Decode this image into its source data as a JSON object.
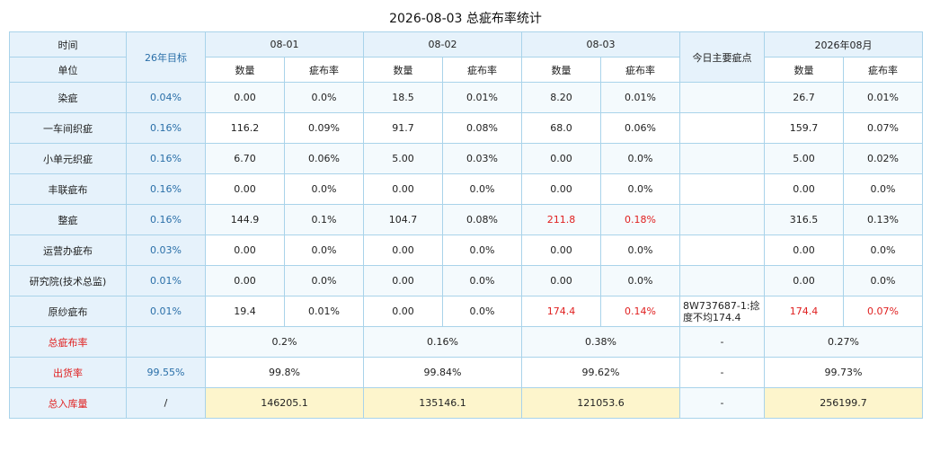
{
  "title": "2026-08-03 总疵布率统计",
  "header": {
    "time_label": "时间",
    "unit_label": "单位",
    "target_label": "26年目标",
    "dates": [
      "08-01",
      "08-02",
      "08-03"
    ],
    "main_defect_label": "今日主要疵点",
    "month_label": "2026年08月",
    "qty_label": "数量",
    "rate_label": "疵布率"
  },
  "rows": [
    {
      "unit": "染疵",
      "target": "0.04%",
      "d1q": "0.00",
      "d1r": "0.0%",
      "d2q": "18.5",
      "d2r": "0.01%",
      "d3q": "8.20",
      "d3r": "0.01%",
      "note": "",
      "mq": "26.7",
      "mr": "0.01%"
    },
    {
      "unit": "一车间织疵",
      "target": "0.16%",
      "d1q": "116.2",
      "d1r": "0.09%",
      "d2q": "91.7",
      "d2r": "0.08%",
      "d3q": "68.0",
      "d3r": "0.06%",
      "note": "",
      "mq": "159.7",
      "mr": "0.07%"
    },
    {
      "unit": "小单元织疵",
      "target": "0.16%",
      "d1q": "6.70",
      "d1r": "0.06%",
      "d2q": "5.00",
      "d2r": "0.03%",
      "d3q": "0.00",
      "d3r": "0.0%",
      "note": "",
      "mq": "5.00",
      "mr": "0.02%"
    },
    {
      "unit": "丰联疵布",
      "target": "0.16%",
      "d1q": "0.00",
      "d1r": "0.0%",
      "d2q": "0.00",
      "d2r": "0.0%",
      "d3q": "0.00",
      "d3r": "0.0%",
      "note": "",
      "mq": "0.00",
      "mr": "0.0%"
    },
    {
      "unit": "整疵",
      "target": "0.16%",
      "d1q": "144.9",
      "d1r": "0.1%",
      "d2q": "104.7",
      "d2r": "0.08%",
      "d3q": "211.8",
      "d3r": "0.18%",
      "note": "",
      "mq": "316.5",
      "mr": "0.13%"
    },
    {
      "unit": "运营办疵布",
      "target": "0.03%",
      "d1q": "0.00",
      "d1r": "0.0%",
      "d2q": "0.00",
      "d2r": "0.0%",
      "d3q": "0.00",
      "d3r": "0.0%",
      "note": "",
      "mq": "0.00",
      "mr": "0.0%"
    },
    {
      "unit": "研究院(技术总监)",
      "target": "0.01%",
      "d1q": "0.00",
      "d1r": "0.0%",
      "d2q": "0.00",
      "d2r": "0.0%",
      "d3q": "0.00",
      "d3r": "0.0%",
      "note": "",
      "mq": "0.00",
      "mr": "0.0%"
    },
    {
      "unit": "原纱疵布",
      "target": "0.01%",
      "d1q": "19.4",
      "d1r": "0.01%",
      "d2q": "0.00",
      "d2r": "0.0%",
      "d3q": "174.4",
      "d3r": "0.14%",
      "note": "8W737687-1:捻度不均174.4",
      "mq": "174.4",
      "mr": "0.07%"
    }
  ],
  "summary": {
    "total_rate": {
      "label": "总疵布率",
      "target": "",
      "d1": "0.2%",
      "d2": "0.16%",
      "d3": "0.38%",
      "note": "-",
      "month": "0.27%"
    },
    "ship_rate": {
      "label": "出货率",
      "target": "99.55%",
      "d1": "99.8%",
      "d2": "99.84%",
      "d3": "99.62%",
      "note": "-",
      "month": "99.73%"
    },
    "stock": {
      "label": "总入库量",
      "target": "/",
      "d1": "146205.1",
      "d2": "135146.1",
      "d3": "121053.6",
      "note": "-",
      "month": "256199.7"
    }
  },
  "colors": {
    "header_bg": "#e6f2fb",
    "border": "#a9d3ea",
    "highlight_red": "#e02020",
    "target_blue": "#2a6fa8",
    "stock_yellow": "#fdf5cc"
  }
}
